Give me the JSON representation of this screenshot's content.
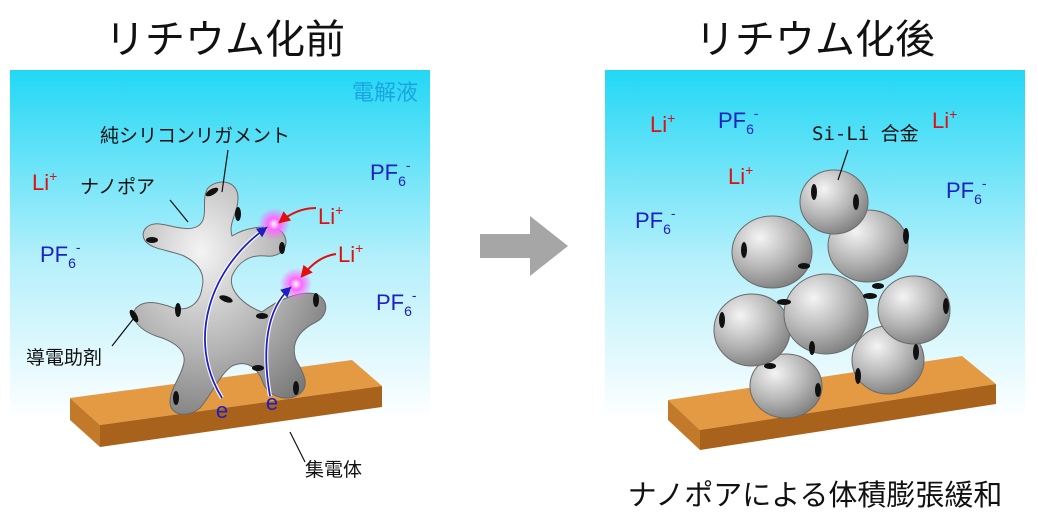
{
  "titles": {
    "before": "リチウム化前",
    "after": "リチウム化後"
  },
  "before_panel": {
    "electrolyte_label": "電解液",
    "ligament_label": "純シリコンリガメント",
    "nanopore_label": "ナノポア",
    "additive_label": "導電助剤",
    "collector_label": "集電体",
    "electron_symbol": "e"
  },
  "after_panel": {
    "alloy_label": "Si-Li 合金"
  },
  "bottom_caption": "ナノポアによる体積膨張緩和",
  "ions": {
    "li": "Li",
    "li_charge": "+",
    "pf": "PF",
    "pf_sub": "6",
    "pf_charge": "-"
  },
  "colors": {
    "li": "#e01010",
    "pf6": "#2020c0",
    "electrolyte_top": "#22d7f5",
    "current_collector": "#d98a2e",
    "silicon": "#9e9e9e",
    "electron_path": "#2020c0",
    "arrow": "#a6a6a6"
  },
  "icons": {
    "process_arrow": "right-arrow-icon"
  }
}
